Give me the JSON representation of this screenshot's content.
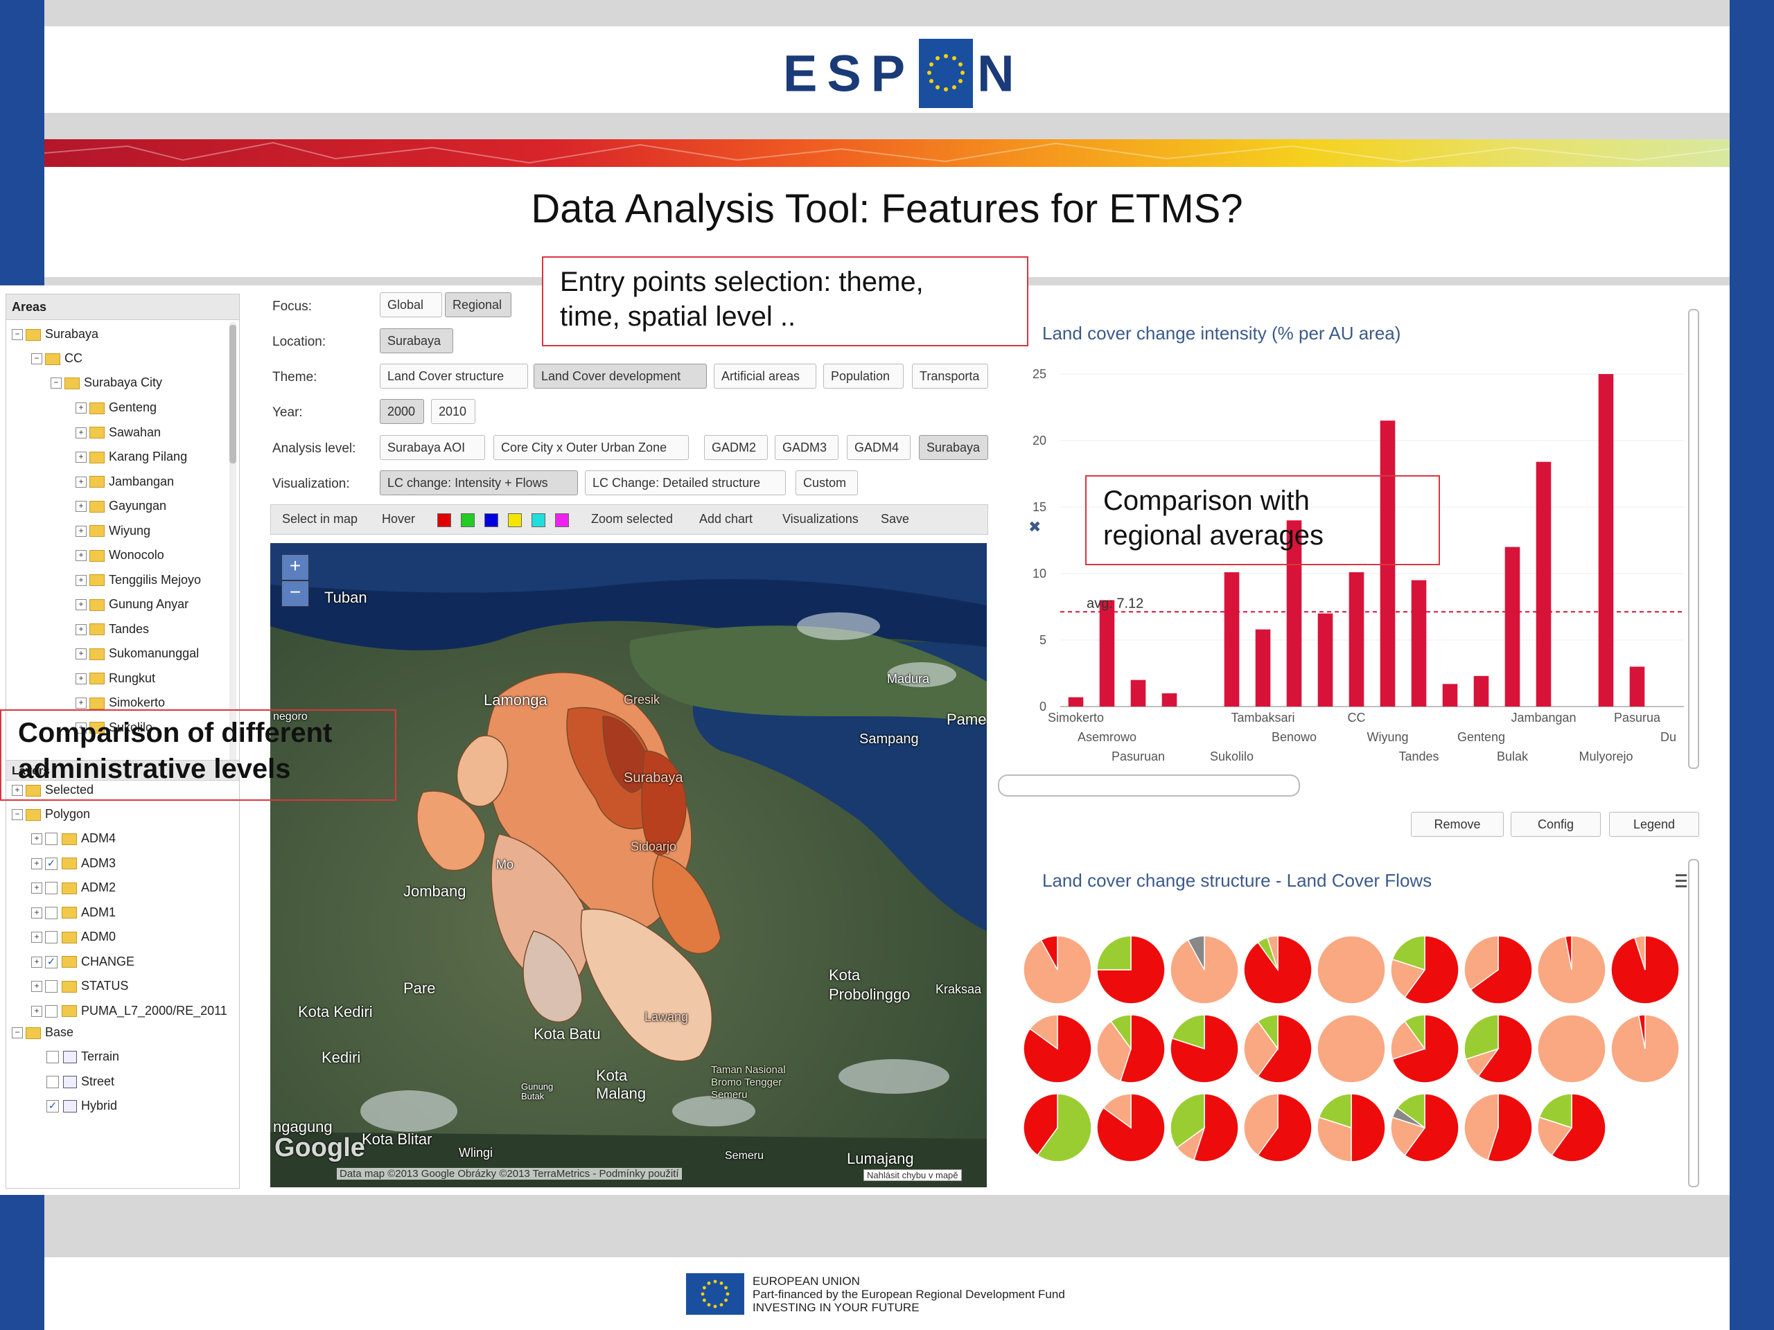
{
  "slide": {
    "brand_text_left": "ESP",
    "brand_text_right": "N",
    "title": "Data Analysis Tool: Features for ETMS?",
    "footer_lines": [
      "EUROPEAN UNION",
      "Part-financed by the European Regional Development Fund",
      "INVESTING IN YOUR FUTURE"
    ],
    "colors": {
      "frame_blue": "#1f4a97",
      "callout_red": "#d9363e",
      "bar_red": "#d8133a"
    }
  },
  "callouts": {
    "entry_points": [
      "Entry points selection: theme,",
      "time, spatial level .."
    ],
    "comparison_avg": [
      "Comparison with",
      "regional averages"
    ],
    "comparison_admin": [
      "Comparison of different",
      "administrative levels"
    ]
  },
  "tree": {
    "header": "Areas",
    "root": "Surabaya",
    "cc": "CC",
    "city": "Surabaya City",
    "districts": [
      "Genteng",
      "Sawahan",
      "Karang Pilang",
      "Jambangan",
      "Gayungan",
      "Wiyung",
      "Wonocolo",
      "Tenggilis Mejoyo",
      "Gunung Anyar",
      "Tandes",
      "Sukomanunggal",
      "Rungkut",
      "Simokerto",
      "Sukolilo"
    ],
    "layers_header": "Layers",
    "selected": "Selected",
    "polygon": "Polygon",
    "polygon_layers": [
      {
        "label": "ADM4",
        "checked": false
      },
      {
        "label": "ADM3",
        "checked": true
      },
      {
        "label": "ADM2",
        "checked": false
      },
      {
        "label": "ADM1",
        "checked": false
      },
      {
        "label": "ADM0",
        "checked": false
      },
      {
        "label": "CHANGE",
        "checked": true
      },
      {
        "label": "STATUS",
        "checked": false
      },
      {
        "label": "PUMA_L7_2000/RE_2011",
        "checked": false
      }
    ],
    "base": "Base",
    "base_layers": [
      {
        "label": "Terrain",
        "checked": false
      },
      {
        "label": "Street",
        "checked": false
      },
      {
        "label": "Hybrid",
        "checked": true
      }
    ]
  },
  "controls": {
    "focus_label": "Focus:",
    "focus_options": [
      "Global",
      "Regional"
    ],
    "location_label": "Location:",
    "location_value": "Surabaya",
    "theme_label": "Theme:",
    "theme_options": [
      "Land Cover structure",
      "Land Cover development",
      "Artificial areas",
      "Population",
      "Transporta"
    ],
    "year_label": "Year:",
    "year_options": [
      "2000",
      "2010"
    ],
    "analysis_label": "Analysis level:",
    "analysis_options": [
      "Surabaya AOI",
      "Core City x Outer Urban Zone",
      "GADM2",
      "GADM3",
      "GADM4",
      "Surabaya"
    ],
    "visualization_label": "Visualization:",
    "visualization_options": [
      "LC change: Intensity + Flows",
      "LC Change: Detailed structure",
      "Custom"
    ]
  },
  "toolbar": {
    "select_in_map": "Select in map",
    "hover": "Hover",
    "swatches": [
      "#e00000",
      "#22cc22",
      "#0000dd",
      "#f2e600",
      "#22dddd",
      "#ee22ee"
    ],
    "zoom_selected": "Zoom selected",
    "add_chart": "Add chart",
    "visualizations": "Visualizations",
    "save": "Save"
  },
  "map": {
    "zoom_in": "+",
    "zoom_out": "−",
    "labels": {
      "tuban": "Tuban",
      "lamongan": "Lamonga",
      "madura": "Madura",
      "pame": "Pame",
      "sampang": "Sampang",
      "bojonegoro": "negoro",
      "jombang": "Jombang",
      "pare": "Pare",
      "kota_kediri": "Kota Kediri",
      "kota_batu": "Kota Batu",
      "kediri": "Kediri",
      "kota_malang": "Kota\nMalang",
      "kota_probolinggo": "Kota\nProbolinggo",
      "kraksaan": "Kraksaa",
      "tulungagung": "ngagung",
      "kota_blitar": "Kota Blitar",
      "wlingi": "Wlingi",
      "lumajang": "Lumajang",
      "semeru": "Semeru",
      "tn": "Taman Nasional\nBromo Tengger\nSemeru",
      "surabaya": "Surabaya",
      "gresik": "Gresik",
      "sidoarjo": "Sidoarjo",
      "mojokerto": "Mo",
      "lawang": "Lawang",
      "gunung": "Gunung\nButak"
    },
    "google": "Google",
    "attribution": "Data map ©2013 Google Obrázky ©2013 TerraMetrics - Podmínky použití",
    "report": "Nahlásit chybu v mapě"
  },
  "chart_data": [
    {
      "type": "bar",
      "title": "Land cover change intensity (% per AU area)",
      "categories": [
        "Simokerto",
        "Asemrowo",
        "Pasuruan",
        "",
        "",
        "Sukolilo",
        "Tambaksari",
        "Benowo",
        "",
        "CC",
        "Wiyung",
        "Tandes",
        "",
        "Genteng",
        "Bulak",
        "Jambangan",
        "",
        "Mulyorejo",
        "Pasurua",
        "Du"
      ],
      "values": [
        0.7,
        8,
        2,
        1,
        0,
        10.1,
        5.8,
        14,
        7,
        10.1,
        21.5,
        9.5,
        1.7,
        2.3,
        12,
        18.4,
        0,
        25,
        3,
        0
      ],
      "ylim": [
        0,
        25
      ],
      "yticks": [
        0,
        5,
        10,
        15,
        20,
        25
      ],
      "annotation": "avg: 7.12",
      "avg": 7.12,
      "color": "#d8133a"
    },
    {
      "type": "pie",
      "title": "Land cover change structure - Land Cover Flows",
      "colors": {
        "red": "#ee0b0b",
        "salmon": "#f9a882",
        "green": "#9acd32",
        "grey": "#888888"
      },
      "pies": [
        [
          [
            "salmon",
            0.92
          ],
          [
            "red",
            0.08
          ]
        ],
        [
          [
            "red",
            0.75
          ],
          [
            "green",
            0.25
          ]
        ],
        [
          [
            "salmon",
            0.92
          ],
          [
            "grey",
            0.08
          ]
        ],
        [
          [
            "red",
            0.9
          ],
          [
            "green",
            0.05
          ],
          [
            "salmon",
            0.05
          ]
        ],
        [
          [
            "salmon",
            1.0
          ]
        ],
        [
          [
            "red",
            0.6
          ],
          [
            "salmon",
            0.2
          ],
          [
            "green",
            0.2
          ]
        ],
        [
          [
            "red",
            0.65
          ],
          [
            "salmon",
            0.35
          ]
        ],
        [
          [
            "salmon",
            0.97
          ],
          [
            "red",
            0.03
          ]
        ],
        [
          [
            "red",
            0.95
          ],
          [
            "salmon",
            0.05
          ]
        ],
        [
          [
            "red",
            0.85
          ],
          [
            "salmon",
            0.15
          ]
        ],
        [
          [
            "red",
            0.55
          ],
          [
            "salmon",
            0.35
          ],
          [
            "green",
            0.1
          ]
        ],
        [
          [
            "red",
            0.8
          ],
          [
            "green",
            0.2
          ]
        ],
        [
          [
            "red",
            0.6
          ],
          [
            "salmon",
            0.3
          ],
          [
            "green",
            0.1
          ]
        ],
        [
          [
            "salmon",
            1.0
          ]
        ],
        [
          [
            "red",
            0.7
          ],
          [
            "salmon",
            0.2
          ],
          [
            "green",
            0.1
          ]
        ],
        [
          [
            "red",
            0.6
          ],
          [
            "salmon",
            0.1
          ],
          [
            "green",
            0.3
          ]
        ],
        [
          [
            "salmon",
            1.0
          ]
        ],
        [
          [
            "salmon",
            0.97
          ],
          [
            "red",
            0.03
          ]
        ],
        [
          [
            "green",
            0.6
          ],
          [
            "red",
            0.4
          ]
        ],
        [
          [
            "red",
            0.85
          ],
          [
            "salmon",
            0.15
          ]
        ],
        [
          [
            "red",
            0.55
          ],
          [
            "salmon",
            0.1
          ],
          [
            "green",
            0.35
          ]
        ],
        [
          [
            "red",
            0.6
          ],
          [
            "salmon",
            0.4
          ]
        ],
        [
          [
            "red",
            0.5
          ],
          [
            "salmon",
            0.3
          ],
          [
            "green",
            0.2
          ]
        ],
        [
          [
            "red",
            0.6
          ],
          [
            "salmon",
            0.2
          ],
          [
            "grey",
            0.05
          ],
          [
            "green",
            0.15
          ]
        ],
        [
          [
            "red",
            0.55
          ],
          [
            "salmon",
            0.45
          ]
        ],
        [
          [
            "red",
            0.6
          ],
          [
            "salmon",
            0.2
          ],
          [
            "green",
            0.2
          ]
        ]
      ]
    }
  ],
  "chart_buttons": {
    "remove": "Remove",
    "config": "Config",
    "legend": "Legend"
  }
}
